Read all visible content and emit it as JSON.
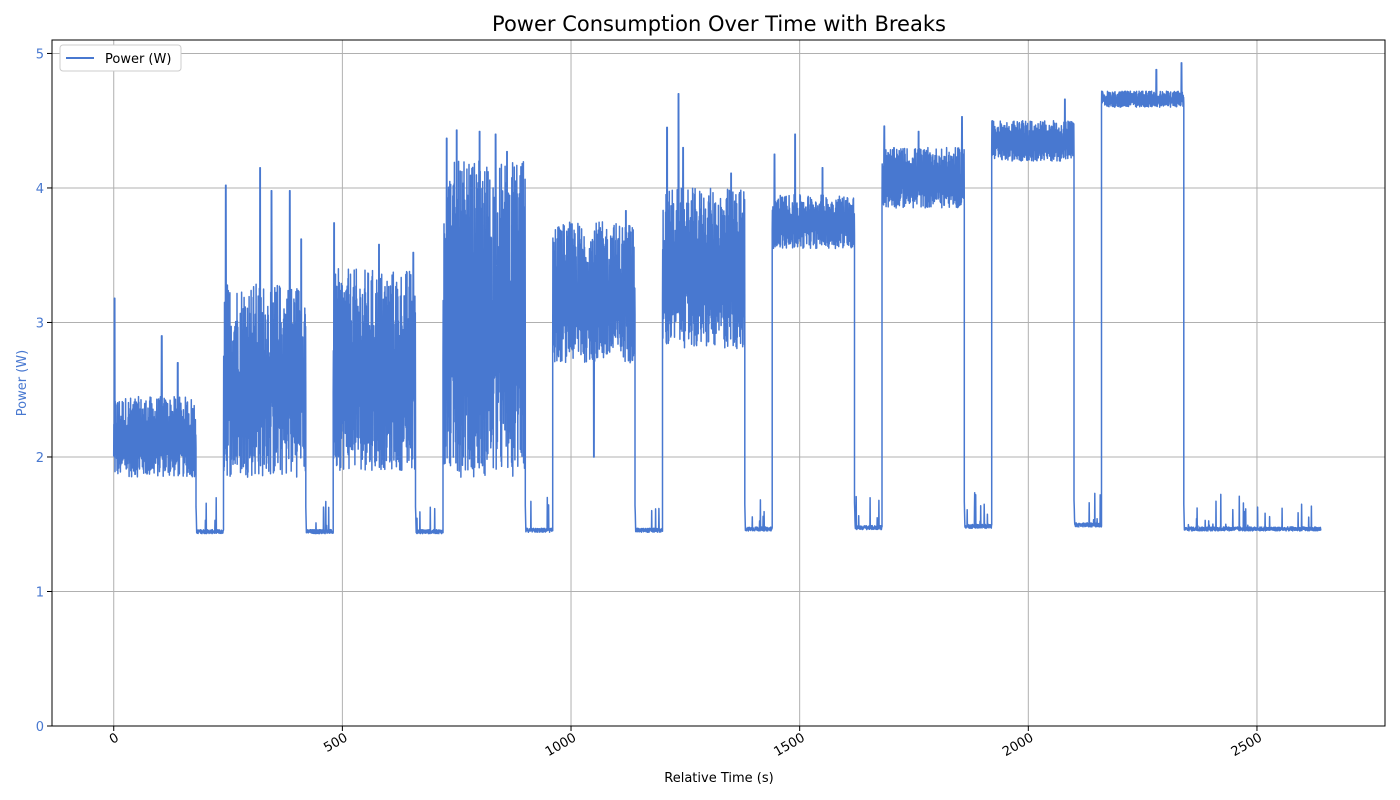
{
  "chart_data": {
    "type": "line",
    "title": "Power Consumption Over Time with Breaks",
    "xlabel": "Relative Time (s)",
    "ylabel": "Power (W)",
    "xlim": [
      -135,
      2780
    ],
    "ylim": [
      0,
      5.1
    ],
    "xticks": [
      0,
      500,
      1000,
      1500,
      2000,
      2500
    ],
    "yticks": [
      0,
      1,
      2,
      3,
      4,
      5
    ],
    "grid": true,
    "legend": {
      "position": "top-left",
      "entries": [
        "Power (W)"
      ]
    },
    "colors": {
      "series": "#4878d0",
      "ylabel": "#4878d0",
      "grid": "#b0b0b0"
    },
    "series": [
      {
        "name": "Power (W)",
        "segments": [
          {
            "x_start": 0,
            "x_end": 180,
            "low": 1.85,
            "high": 2.45,
            "spike_max": 3.18,
            "spikes": [
              [
                2,
                3.18
              ],
              [
                105,
                2.9
              ],
              [
                140,
                2.7
              ]
            ]
          },
          {
            "x_start": 180,
            "x_end": 240,
            "idle": 1.43
          },
          {
            "x_start": 240,
            "x_end": 420,
            "low": 1.85,
            "high": 3.3,
            "spike_max": 4.15,
            "spikes": [
              [
                245,
                4.02
              ],
              [
                320,
                4.15
              ],
              [
                345,
                3.98
              ],
              [
                385,
                3.98
              ],
              [
                410,
                3.62
              ]
            ]
          },
          {
            "x_start": 420,
            "x_end": 480,
            "idle": 1.43
          },
          {
            "x_start": 480,
            "x_end": 660,
            "low": 1.9,
            "high": 3.4,
            "spike_max": 3.74,
            "spikes": [
              [
                482,
                3.74
              ],
              [
                580,
                3.58
              ],
              [
                655,
                3.52
              ]
            ]
          },
          {
            "x_start": 660,
            "x_end": 720,
            "idle": 1.43
          },
          {
            "x_start": 720,
            "x_end": 900,
            "low": 1.85,
            "high": 4.2,
            "spike_max": 4.44,
            "spikes": [
              [
                728,
                4.37
              ],
              [
                750,
                4.43
              ],
              [
                800,
                4.42
              ],
              [
                835,
                4.4
              ],
              [
                860,
                4.27
              ],
              [
                895,
                3.68
              ]
            ]
          },
          {
            "x_start": 900,
            "x_end": 960,
            "idle": 1.44
          },
          {
            "x_start": 960,
            "x_end": 1140,
            "low": 2.7,
            "high": 3.75,
            "spike_max": 3.83,
            "spikes": [
              [
                1050,
                2.0
              ],
              [
                1120,
                3.83
              ]
            ]
          },
          {
            "x_start": 1140,
            "x_end": 1200,
            "idle": 1.44
          },
          {
            "x_start": 1200,
            "x_end": 1380,
            "low": 2.8,
            "high": 4.0,
            "spike_max": 4.7,
            "spikes": [
              [
                1210,
                4.45
              ],
              [
                1235,
                4.7
              ],
              [
                1245,
                4.3
              ],
              [
                1350,
                4.11
              ]
            ]
          },
          {
            "x_start": 1380,
            "x_end": 1440,
            "idle": 1.45
          },
          {
            "x_start": 1440,
            "x_end": 1620,
            "low": 3.55,
            "high": 3.95,
            "spike_max": 4.4,
            "spikes": [
              [
                1445,
                4.25
              ],
              [
                1490,
                4.4
              ],
              [
                1550,
                4.15
              ]
            ]
          },
          {
            "x_start": 1620,
            "x_end": 1680,
            "idle": 1.46
          },
          {
            "x_start": 1680,
            "x_end": 1860,
            "low": 3.85,
            "high": 4.3,
            "spike_max": 4.53,
            "spikes": [
              [
                1685,
                4.46
              ],
              [
                1760,
                4.42
              ],
              [
                1855,
                4.53
              ]
            ]
          },
          {
            "x_start": 1860,
            "x_end": 1920,
            "idle": 1.47
          },
          {
            "x_start": 1920,
            "x_end": 2100,
            "low": 4.2,
            "high": 4.5,
            "spike_max": 4.66,
            "spikes": [
              [
                2080,
                4.66
              ]
            ]
          },
          {
            "x_start": 2100,
            "x_end": 2160,
            "idle": 1.48
          },
          {
            "x_start": 2160,
            "x_end": 2340,
            "low": 4.6,
            "high": 4.72,
            "spike_max": 4.93,
            "spikes": [
              [
                2280,
                4.88
              ],
              [
                2335,
                4.93
              ]
            ]
          },
          {
            "x_start": 2340,
            "x_end": 2640,
            "idle": 1.45
          }
        ]
      }
    ]
  }
}
